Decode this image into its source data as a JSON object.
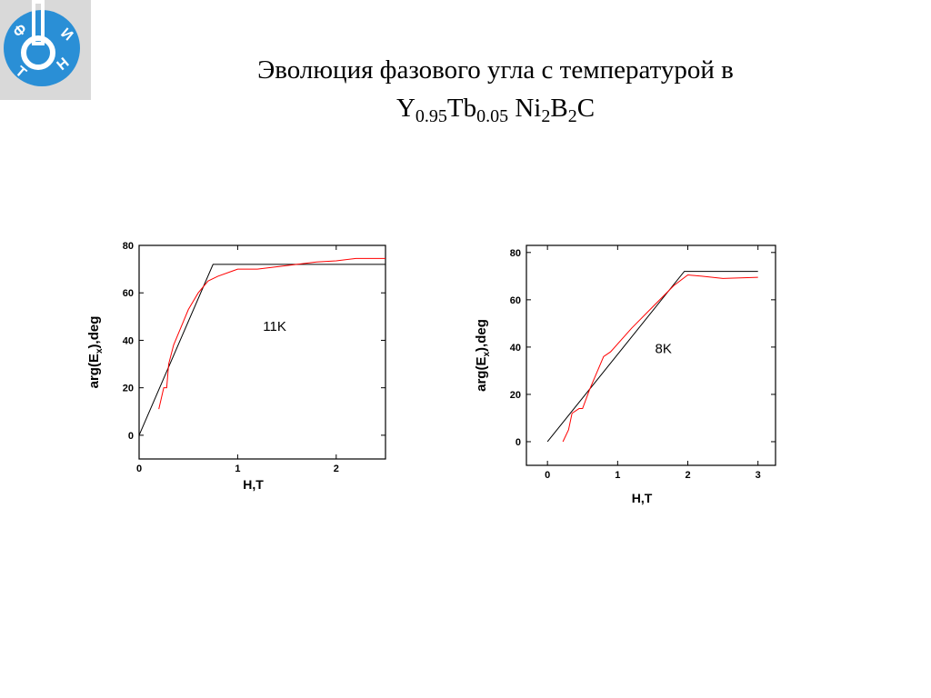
{
  "logo": {
    "letters": [
      "Ф",
      "И",
      "Т",
      "Н"
    ]
  },
  "slide": {
    "title": "Эволюция фазового угла с температурой в",
    "formula": [
      "Y",
      "0.95",
      "Tb",
      "0.05",
      " Ni",
      "2",
      "B",
      "2",
      "C"
    ]
  },
  "chart_data": [
    {
      "type": "line",
      "annotation": "11K",
      "xlabel": "H,T",
      "ylabel": [
        "arg(E",
        "x",
        "),deg"
      ],
      "xlim": [
        0,
        2.5
      ],
      "ylim": [
        -10,
        80
      ],
      "xticks": [
        0,
        1,
        2
      ],
      "yticks": [
        0,
        20,
        40,
        60,
        80
      ],
      "series": [
        {
          "color": "#000000",
          "x": [
            0,
            0.75,
            2.5
          ],
          "values": [
            0,
            72,
            72
          ]
        },
        {
          "color": "#ff0000",
          "x": [
            0.2,
            0.25,
            0.28,
            0.3,
            0.35,
            0.45,
            0.5,
            0.6,
            0.7,
            0.8,
            1.0,
            1.2,
            1.4,
            1.6,
            1.8,
            2.0,
            2.2,
            2.5
          ],
          "values": [
            11,
            20,
            20,
            30,
            38,
            48,
            53,
            60,
            65,
            67,
            70,
            70,
            71,
            72,
            73,
            73.5,
            74.5,
            74.5
          ]
        }
      ]
    },
    {
      "type": "line",
      "annotation": "8K",
      "xlabel": "H,T",
      "ylabel": [
        "arg(E",
        "x",
        "),deg"
      ],
      "xlim": [
        -0.3,
        3.25
      ],
      "ylim": [
        -10,
        83
      ],
      "xticks": [
        0,
        1,
        2,
        3
      ],
      "yticks": [
        0,
        20,
        40,
        60,
        80
      ],
      "series": [
        {
          "color": "#000000",
          "x": [
            0,
            1.95,
            3
          ],
          "values": [
            0,
            72,
            72
          ]
        },
        {
          "color": "#ff0000",
          "x": [
            0.22,
            0.3,
            0.35,
            0.45,
            0.5,
            0.6,
            0.8,
            0.9,
            1.2,
            1.5,
            1.8,
            2.0,
            2.2,
            2.5,
            3
          ],
          "values": [
            0,
            5,
            12,
            14,
            14,
            22,
            36,
            38,
            48,
            57,
            66,
            70.5,
            70,
            69,
            69.5
          ]
        }
      ]
    }
  ]
}
